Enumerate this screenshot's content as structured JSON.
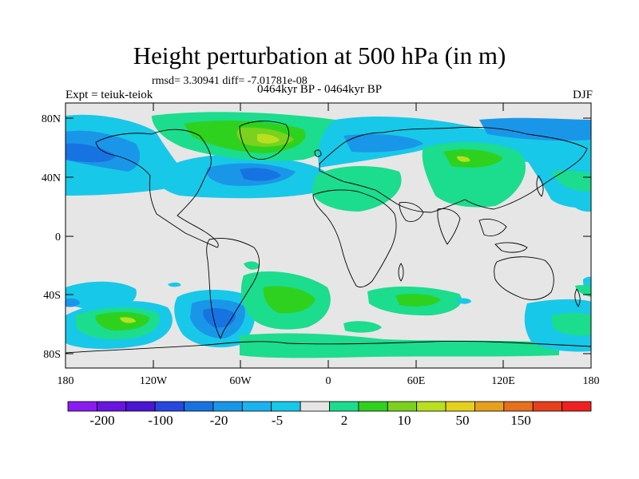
{
  "title": "Height perturbation at 500 hPa (in m)",
  "stats": "rmsd= 3.30941 diff= -7.01781e-08",
  "experiment": "Expt = teiuk-teiok",
  "period": "0464kyr BP - 0464kyr BP",
  "season": "DJF",
  "lat_labels": [
    "80N",
    "40N",
    "0",
    "40S",
    "80S"
  ],
  "lon_labels": [
    "180",
    "120W",
    "60W",
    "0",
    "60E",
    "120E",
    "180"
  ],
  "colorbar": {
    "labels": [
      "-200",
      "-100",
      "-20",
      "-5",
      "2",
      "10",
      "50",
      "150"
    ],
    "colors": [
      "#8a1cf2",
      "#6a14e0",
      "#4a16d4",
      "#2846e0",
      "#1873e2",
      "#1a96e8",
      "#1ab2f0",
      "#18c8e8",
      "#e6e6e6",
      "#1cdc8e",
      "#2ed21e",
      "#7ad21e",
      "#b8e01e",
      "#e6d01e",
      "#e6a01e",
      "#e6701e",
      "#e6401e",
      "#f02020"
    ]
  },
  "colors": {
    "background": "#e6e6e6",
    "coast": "#000000"
  }
}
